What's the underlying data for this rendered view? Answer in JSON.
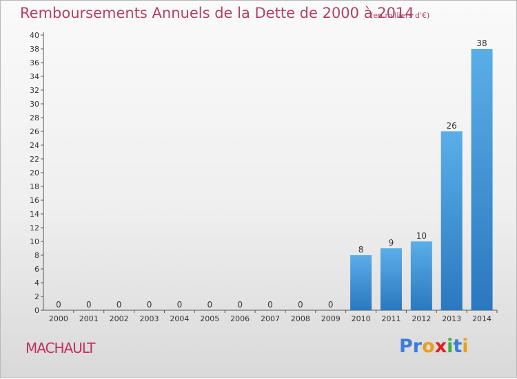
{
  "header": {
    "title": "Remboursements Annuels de la Dette de 2000 à 2014",
    "unit": "(en milliers d'€)"
  },
  "footer": {
    "commune": "MACHAULT",
    "logo": [
      {
        "ch": "P",
        "color": "#3b7dd8"
      },
      {
        "ch": "r",
        "color": "#3b7dd8"
      },
      {
        "ch": "o",
        "color": "#e8a020"
      },
      {
        "ch": "x",
        "color": "#e02020"
      },
      {
        "ch": "i",
        "color": "#3fae3f"
      },
      {
        "ch": "t",
        "color": "#3b7dd8"
      },
      {
        "ch": "i",
        "color": "#e8a020"
      }
    ]
  },
  "chart_data": {
    "type": "bar",
    "title": "Remboursements Annuels de la Dette de 2000 à 2014",
    "ylabel": "en milliers d'€",
    "xlabel": "",
    "categories": [
      "2000",
      "2001",
      "2002",
      "2003",
      "2004",
      "2005",
      "2006",
      "2007",
      "2008",
      "2009",
      "2010",
      "2011",
      "2012",
      "2013",
      "2014"
    ],
    "values": [
      0,
      0,
      0,
      0,
      0,
      0,
      0,
      0,
      0,
      0,
      8,
      9,
      10,
      26,
      38
    ],
    "ylim": [
      0,
      40
    ],
    "yticks": [
      0,
      2,
      4,
      6,
      8,
      10,
      12,
      14,
      16,
      18,
      20,
      22,
      24,
      26,
      28,
      30,
      32,
      34,
      36,
      38,
      40
    ],
    "grid": false,
    "bar_color": "#3b8fd4"
  }
}
